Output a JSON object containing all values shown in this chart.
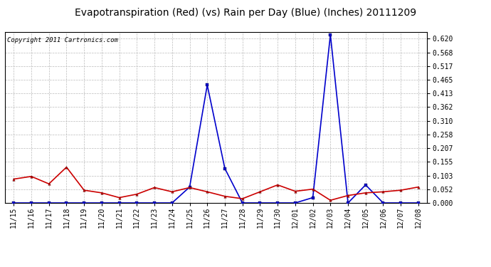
{
  "title": "Evapotranspiration (Red) (vs) Rain per Day (Blue) (Inches) 20111209",
  "copyright": "Copyright 2011 Cartronics.com",
  "x_labels": [
    "11/15",
    "11/16",
    "11/17",
    "11/18",
    "11/19",
    "11/20",
    "11/21",
    "11/22",
    "11/23",
    "11/24",
    "11/25",
    "11/26",
    "11/27",
    "11/28",
    "11/29",
    "11/30",
    "12/01",
    "12/02",
    "12/03",
    "12/04",
    "12/05",
    "12/06",
    "12/07",
    "12/08"
  ],
  "red_data": [
    0.09,
    0.1,
    0.072,
    0.135,
    0.048,
    0.038,
    0.02,
    0.033,
    0.058,
    0.042,
    0.058,
    0.042,
    0.025,
    0.016,
    0.042,
    0.068,
    0.044,
    0.052,
    0.01,
    0.028,
    0.038,
    0.042,
    0.048,
    0.06
  ],
  "blue_data": [
    0.0,
    0.0,
    0.0,
    0.0,
    0.0,
    0.0,
    0.0,
    0.0,
    0.0,
    0.0,
    0.06,
    0.445,
    0.13,
    0.0,
    0.0,
    0.0,
    0.0,
    0.02,
    0.635,
    0.0,
    0.068,
    0.0,
    0.0,
    0.0
  ],
  "y_ticks": [
    0.0,
    0.052,
    0.103,
    0.155,
    0.207,
    0.258,
    0.31,
    0.362,
    0.413,
    0.465,
    0.517,
    0.568,
    0.62
  ],
  "y_min": 0.0,
  "y_max": 0.645,
  "red_color": "#cc0000",
  "blue_color": "#0000cc",
  "fig_bg_color": "#ffffff",
  "plot_bg_color": "#ffffff",
  "title_fontsize": 10,
  "copyright_fontsize": 6.5,
  "tick_fontsize": 7,
  "grid_color": "#bbbbbb"
}
